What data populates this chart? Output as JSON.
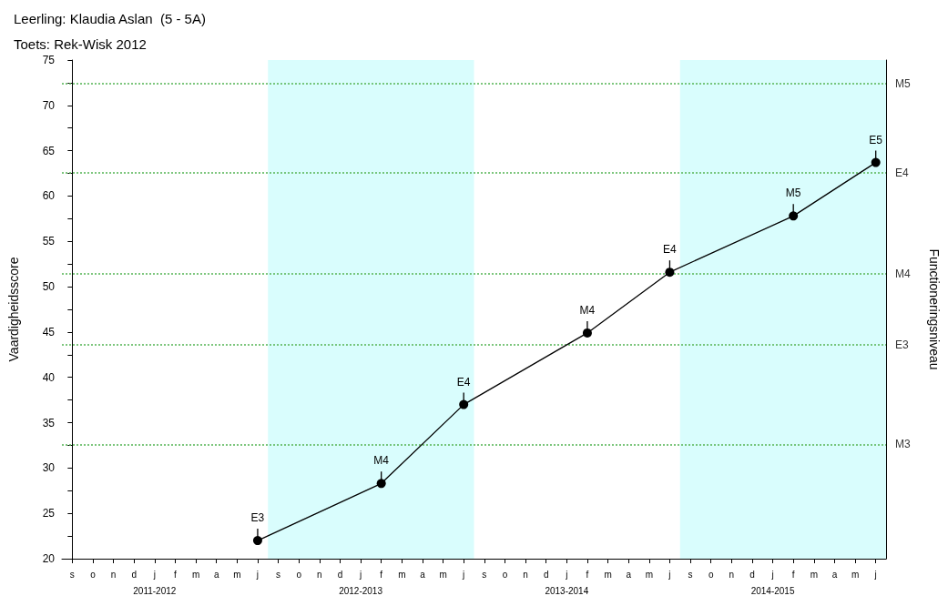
{
  "chart_data": {
    "type": "line",
    "title": "Leerling: Klaudia Aslan  (5 - 5A)",
    "subtitle": "Toets: Rek-Wisk 2012",
    "ylabel": "Vaardigheidsscore",
    "y2label": "Functioneringsniveau",
    "categories": [
      "s",
      "o",
      "n",
      "d",
      "j\n2011-2012",
      "f",
      "m",
      "a",
      "m",
      "j",
      "s",
      "o",
      "n",
      "d",
      "j\n2012-2013",
      "f",
      "m",
      "a",
      "m",
      "j",
      "s",
      "o",
      "n",
      "d",
      "j\n2013-2014",
      "f",
      "m",
      "a",
      "m",
      "j",
      "s",
      "o",
      "n",
      "d",
      "j\n2014-2015",
      "f",
      "m",
      "a",
      "m",
      "j"
    ],
    "series": [
      {
        "color": "#000000",
        "values": [
          null,
          null,
          null,
          null,
          null,
          null,
          null,
          null,
          null,
          22.0,
          null,
          null,
          null,
          null,
          null,
          28.3,
          null,
          null,
          null,
          37.0,
          null,
          null,
          null,
          null,
          null,
          44.9,
          null,
          null,
          null,
          51.6,
          null,
          null,
          null,
          null,
          null,
          57.8,
          null,
          null,
          null,
          63.7
        ],
        "value_labels": [
          null,
          null,
          null,
          null,
          null,
          null,
          null,
          null,
          null,
          "E3",
          null,
          null,
          null,
          null,
          null,
          "M4",
          null,
          null,
          null,
          "E4",
          null,
          null,
          null,
          null,
          null,
          "M4",
          null,
          null,
          null,
          "E4",
          null,
          null,
          null,
          null,
          null,
          "M5",
          null,
          null,
          null,
          "E5"
        ]
      }
    ],
    "ylim": [
      20,
      75
    ],
    "yticks": [
      20,
      {
        "value": 22.5,
        "label": null
      },
      25,
      {
        "value": 27.5,
        "label": null
      },
      30,
      {
        "value": 32.5,
        "label": null
      },
      35,
      {
        "value": 37.5,
        "label": null
      },
      40,
      {
        "value": 42.5,
        "label": null
      },
      45,
      {
        "value": 47.5,
        "label": null
      },
      50,
      {
        "value": 52.5,
        "label": null
      },
      55,
      {
        "value": 57.5,
        "label": null
      },
      60,
      {
        "value": 62.5,
        "label": null
      },
      65,
      {
        "value": 67.5,
        "label": null
      },
      70,
      {
        "value": 72.5,
        "label": null
      },
      75
    ],
    "ref_lines": [
      {
        "axis": "y",
        "value": 32.6,
        "label": "M3",
        "color": "#5cb85c",
        "line_style": "dotted"
      },
      {
        "axis": "y",
        "value": 43.6,
        "label": "E3",
        "color": "#5cb85c",
        "line_style": "dotted"
      },
      {
        "axis": "y",
        "value": 51.4,
        "label": "M4",
        "color": "#5cb85c",
        "line_style": "dotted"
      },
      {
        "axis": "y",
        "value": 62.6,
        "label": "E4",
        "color": "#5cb85c",
        "line_style": "dotted"
      },
      {
        "axis": "y",
        "value": 72.4,
        "label": "M5",
        "color": "#5cb85c",
        "line_style": "dotted"
      }
    ],
    "marker": "circle",
    "line_style": "solid",
    "grid": false
  }
}
